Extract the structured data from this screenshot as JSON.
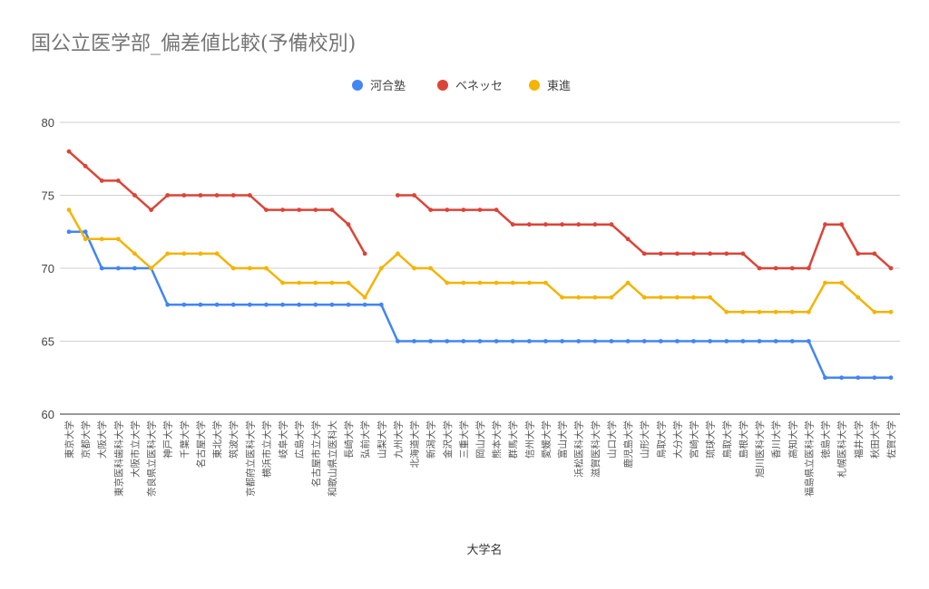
{
  "chart_data": {
    "type": "line",
    "title": "国公立医学部_偏差値比較(予備校別)",
    "xlabel": "大学名",
    "ylabel": "",
    "ylim": [
      60,
      80
    ],
    "yticks": [
      60,
      65,
      70,
      75,
      80
    ],
    "grid": true,
    "legend": "top",
    "categories": [
      "東京大学",
      "京都大学",
      "大阪大学",
      "東京医科歯科大学",
      "大阪市立大学",
      "奈良県立医科大学",
      "神戸大学",
      "千葉大学",
      "名古屋大学",
      "東北大学",
      "筑波大学",
      "京都府立医科大学",
      "横浜市立大学",
      "岐阜大学",
      "広島大学",
      "名古屋市立大学",
      "和歌山県立医科大",
      "長崎大学",
      "弘前大学",
      "山梨大学",
      "九州大学",
      "北海道大学",
      "新潟大学",
      "金沢大学",
      "三重大学",
      "岡山大学",
      "熊本大学",
      "群馬大学",
      "信州大学",
      "愛媛大学",
      "富山大学",
      "浜松医科大学",
      "滋賀医科大学",
      "山口大学",
      "鹿児島大学",
      "山形大学",
      "鳥取大学",
      "大分大学",
      "宮崎大学",
      "琉球大学",
      "鳥取大学",
      "島根大学",
      "旭川医科大学",
      "香川大学",
      "高知大学",
      "福島県立医科大学",
      "徳島大学",
      "札幌医科大学",
      "福井大学",
      "秋田大学",
      "佐賀大学"
    ],
    "series": [
      {
        "name": "河合塾",
        "color": "#4285F4",
        "values": [
          72.5,
          72.5,
          70,
          70,
          70,
          70,
          67.5,
          67.5,
          67.5,
          67.5,
          67.5,
          67.5,
          67.5,
          67.5,
          67.5,
          67.5,
          67.5,
          67.5,
          67.5,
          67.5,
          65,
          65,
          65,
          65,
          65,
          65,
          65,
          65,
          65,
          65,
          65,
          65,
          65,
          65,
          65,
          65,
          65,
          65,
          65,
          65,
          65,
          65,
          65,
          65,
          65,
          65,
          62.5,
          62.5,
          62.5,
          62.5,
          62.5
        ]
      },
      {
        "name": "ベネッセ",
        "color": "#DB4437",
        "values": [
          78,
          77,
          76,
          76,
          75,
          74,
          75,
          75,
          75,
          75,
          75,
          75,
          74,
          74,
          74,
          74,
          74,
          73,
          71,
          null,
          75,
          75,
          74,
          74,
          74,
          74,
          74,
          73,
          73,
          73,
          73,
          73,
          73,
          73,
          72,
          71,
          71,
          71,
          71,
          71,
          71,
          71,
          70,
          70,
          70,
          70,
          73,
          73,
          71,
          71,
          70
        ]
      },
      {
        "name": "東進",
        "color": "#F4B400",
        "values": [
          74,
          72,
          72,
          72,
          71,
          70,
          71,
          71,
          71,
          71,
          70,
          70,
          70,
          69,
          69,
          69,
          69,
          69,
          68,
          70,
          71,
          70,
          70,
          69,
          69,
          69,
          69,
          69,
          69,
          69,
          68,
          68,
          68,
          68,
          69,
          68,
          68,
          68,
          68,
          68,
          67,
          67,
          67,
          67,
          67,
          67,
          69,
          69,
          68,
          67,
          67
        ]
      }
    ]
  }
}
